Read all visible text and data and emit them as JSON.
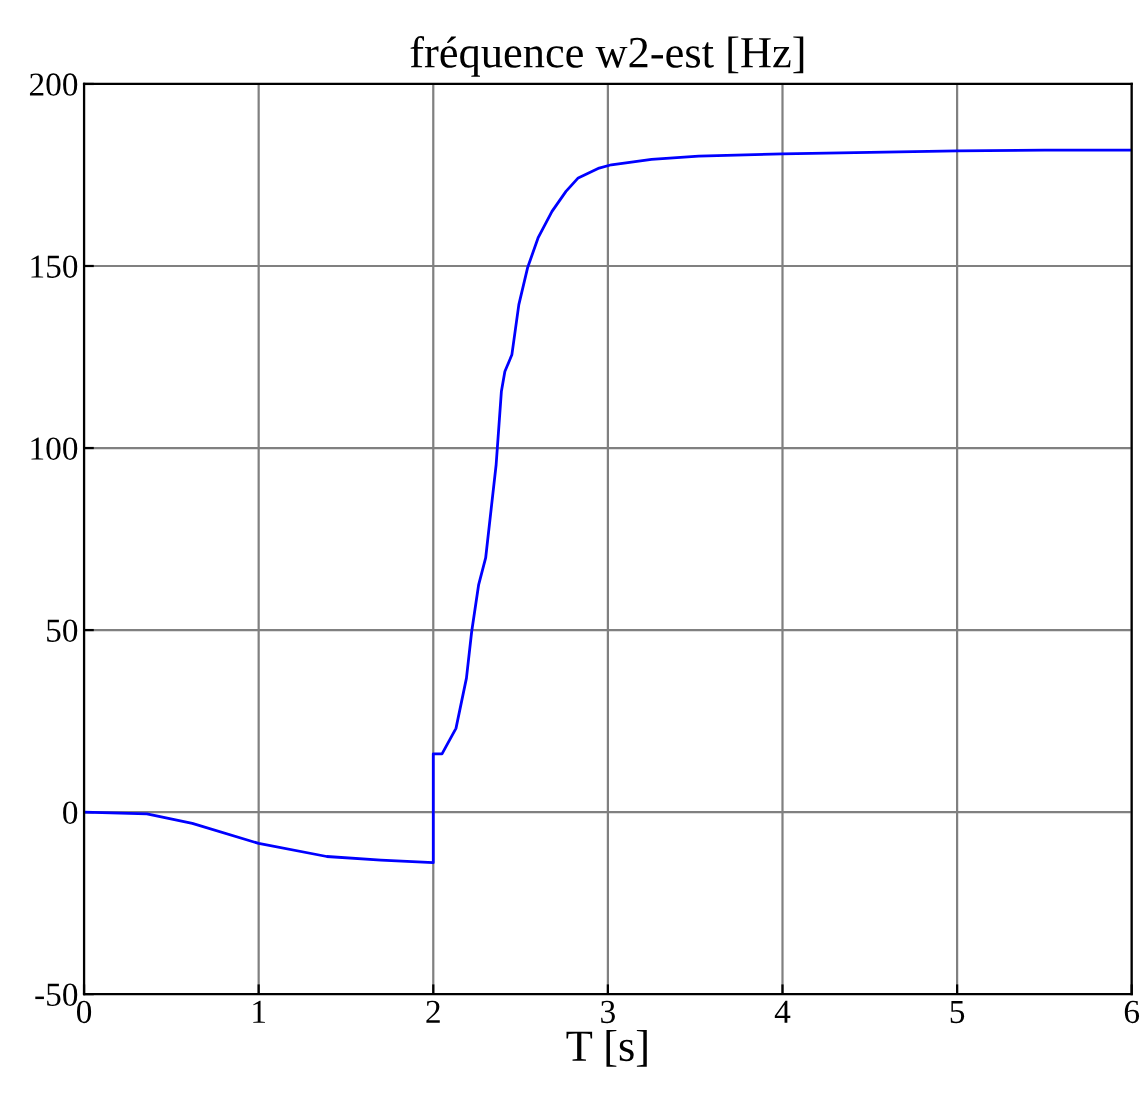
{
  "chart_data": {
    "type": "line",
    "title": "fréquence w2-est [Hz]",
    "xlabel": "T [s]",
    "series": [
      {
        "color": "#0000ff",
        "x": [
          0,
          0.36,
          0.62,
          1.0,
          1.39,
          1.7,
          2.0,
          2.0,
          2.05,
          2.13,
          2.19,
          2.22,
          2.26,
          2.3,
          2.36,
          2.39,
          2.41,
          2.45,
          2.49,
          2.54,
          2.6,
          2.68,
          2.76,
          2.83,
          2.95,
          3.02,
          3.25,
          3.52,
          4.0,
          4.5,
          5.0,
          5.5,
          6.0
        ],
        "values": [
          0,
          -0.5,
          -3.1,
          -8.6,
          -12.2,
          -13.2,
          -13.9,
          16,
          16,
          23,
          36.8,
          49.6,
          62.5,
          69.8,
          95.4,
          115.5,
          121,
          125.6,
          139.4,
          149.5,
          157.7,
          165,
          170.5,
          174.2,
          176.9,
          177.8,
          179.3,
          180.2,
          180.8,
          181.2,
          181.6,
          181.8,
          181.8
        ]
      }
    ],
    "xlim": [
      0,
      6
    ],
    "ylim": [
      -50,
      200
    ],
    "xticks": [
      0,
      1,
      2,
      3,
      4,
      5,
      6
    ],
    "yticks": [
      -50,
      0,
      50,
      100,
      150,
      200
    ],
    "grid": true,
    "line_style": "solid",
    "marker": "none"
  }
}
